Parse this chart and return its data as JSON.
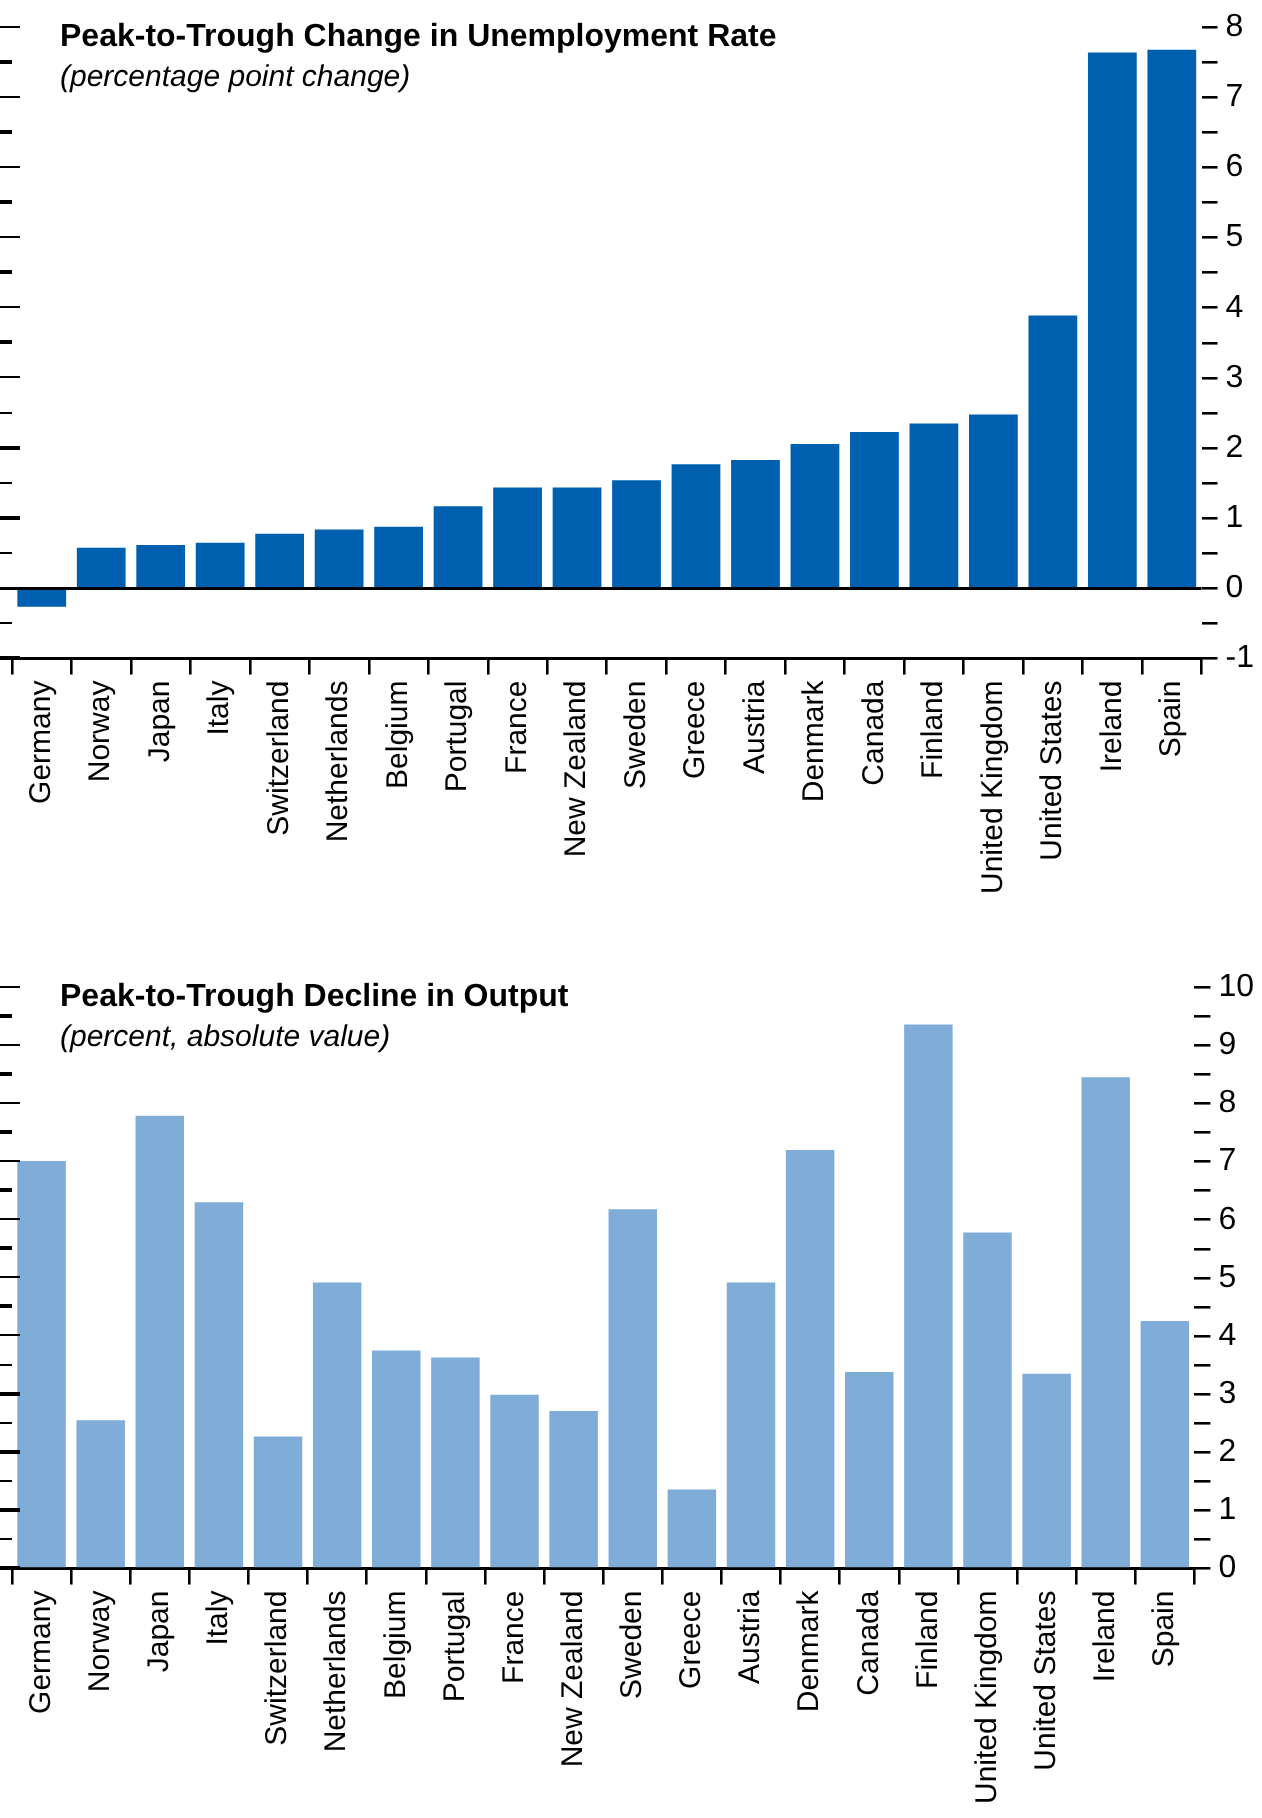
{
  "chart_data": [
    {
      "type": "bar",
      "title": "Peak-to-Trough Change in Unemployment Rate",
      "subtitle": "(percentage point change)",
      "categories": [
        "Germany",
        "Norway",
        "Japan",
        "Italy",
        "Switzerland",
        "Netherlands",
        "Belgium",
        "Portugal",
        "France",
        "New Zealand",
        "Sweden",
        "Greece",
        "Austria",
        "Denmark",
        "Canada",
        "Finland",
        "United Kingdom",
        "United States",
        "Ireland",
        "Spain"
      ],
      "values": [
        -0.26,
        0.58,
        0.62,
        0.65,
        0.78,
        0.84,
        0.88,
        1.17,
        1.44,
        1.44,
        1.54,
        1.77,
        1.83,
        2.06,
        2.23,
        2.35,
        2.48,
        3.89,
        7.64,
        7.68
      ],
      "color": "#0060b0",
      "ref_lines": [
        {
          "axis": "y",
          "value": 0,
          "color": "#000000"
        }
      ],
      "ylim": [
        -1,
        8
      ],
      "yticks": [
        -1,
        {
          "value": -0.5,
          "label": null
        },
        0,
        {
          "value": 0.5,
          "label": null
        },
        1,
        {
          "value": 1.5,
          "label": null
        },
        2,
        {
          "value": 2.5,
          "label": null
        },
        3,
        {
          "value": 3.5,
          "label": null
        },
        4,
        {
          "value": 4.5,
          "label": null
        },
        5,
        {
          "value": 5.5,
          "label": null
        },
        6,
        {
          "value": 6.5,
          "label": null
        },
        7,
        {
          "value": 7.5,
          "label": null
        },
        8
      ],
      "grid": false,
      "legend": false
    },
    {
      "type": "bar",
      "title": "Peak-to-Trough Decline in Output",
      "subtitle": "(percent, absolute value)",
      "categories": [
        "Germany",
        "Norway",
        "Japan",
        "Italy",
        "Switzerland",
        "Netherlands",
        "Belgium",
        "Portugal",
        "France",
        "New Zealand",
        "Sweden",
        "Greece",
        "Austria",
        "Denmark",
        "Canada",
        "Finland",
        "United Kingdom",
        "United States",
        "Ireland",
        "Spain"
      ],
      "values": [
        7.01,
        2.55,
        7.79,
        6.3,
        2.27,
        4.92,
        3.75,
        3.63,
        2.99,
        2.71,
        6.18,
        1.36,
        4.92,
        7.2,
        3.38,
        9.36,
        5.78,
        3.35,
        8.45,
        4.26
      ],
      "color": "#7fadd7",
      "ylim": [
        0,
        10
      ],
      "yticks": [
        0,
        {
          "value": 0.5,
          "label": null
        },
        1,
        {
          "value": 1.5,
          "label": null
        },
        2,
        {
          "value": 2.5,
          "label": null
        },
        3,
        {
          "value": 3.5,
          "label": null
        },
        4,
        {
          "value": 4.5,
          "label": null
        },
        5,
        {
          "value": 5.5,
          "label": null
        },
        6,
        {
          "value": 6.5,
          "label": null
        },
        7,
        {
          "value": 7.5,
          "label": null
        },
        8,
        {
          "value": 8.5,
          "label": null
        },
        9,
        {
          "value": 9.5,
          "label": null
        },
        10
      ],
      "grid": false,
      "legend": false
    }
  ]
}
